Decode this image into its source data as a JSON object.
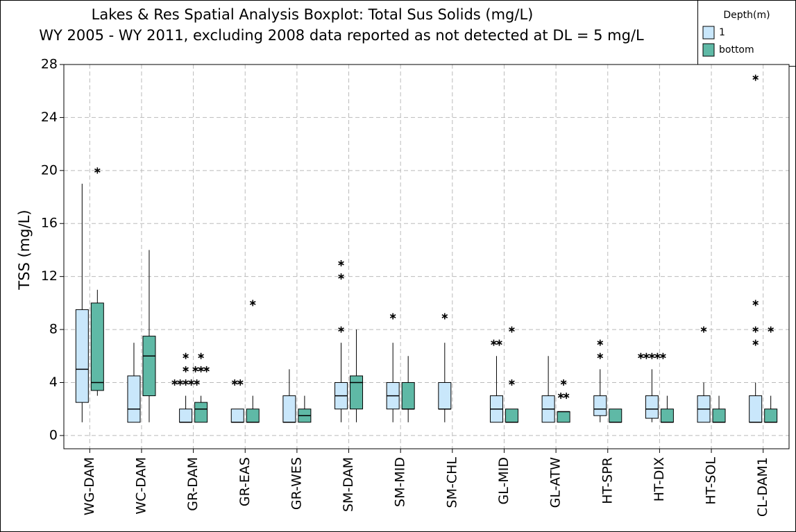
{
  "chart_data": {
    "type": "boxplot",
    "title": "Lakes & Res Spatial Analysis Boxplot: Total Sus Solids (mg/L)",
    "subtitle": "WY 2005 - WY 2011, excluding 2008 data reported as not detected at DL  = 5 mg/L",
    "y_label": "TSS (mg/L)",
    "legend_title": "Depth(m)",
    "categories": [
      "WG-DAM",
      "WC-DAM",
      "GR-DAM",
      "GR-EAS",
      "GR-WES",
      "SM-DAM",
      "SM-MID",
      "SM-CHL",
      "GL-MID",
      "GL-ATW",
      "HT-SPR",
      "HT-DIX",
      "HT-SOL",
      "CL-DAM1"
    ],
    "ylim": [
      -1,
      28
    ],
    "yticks": [
      0,
      4,
      8,
      12,
      16,
      20,
      24,
      28
    ],
    "grid": true,
    "series": [
      {
        "name": "1",
        "color": "#c9e7fb",
        "whisker_low": [
          1,
          1,
          1,
          1,
          1,
          1,
          1,
          1,
          1,
          1,
          1,
          1,
          1,
          1
        ],
        "q1": [
          2.5,
          1,
          1,
          1,
          1,
          2,
          2,
          2,
          1,
          1,
          1.5,
          1.3,
          1,
          1
        ],
        "median": [
          5,
          2,
          1,
          1,
          1,
          3,
          3,
          2,
          2,
          2,
          2,
          2,
          2,
          1
        ],
        "q3": [
          9.5,
          4.5,
          2,
          2,
          3,
          4,
          4,
          4,
          3,
          3,
          3,
          3,
          3,
          3
        ],
        "whisker_high": [
          19,
          7,
          3,
          2,
          5,
          7,
          7,
          7,
          6,
          6,
          5,
          5,
          4,
          4
        ],
        "outliers": [
          [],
          [],
          [
            4,
            4,
            4,
            4,
            4,
            5,
            6
          ],
          [
            4,
            4
          ],
          [],
          [
            8,
            12,
            13
          ],
          [
            9
          ],
          [
            9
          ],
          [
            7,
            7
          ],
          [],
          [
            6,
            7
          ],
          [
            6,
            6,
            6,
            6,
            6
          ],
          [
            8
          ],
          [
            7,
            8,
            10,
            27
          ]
        ]
      },
      {
        "name": "bottom",
        "color": "#5fb9a6",
        "whisker_low": [
          3,
          1,
          1,
          1,
          1,
          1,
          1,
          null,
          1,
          1,
          1,
          1,
          1,
          1
        ],
        "q1": [
          3.4,
          3,
          1,
          1,
          1,
          2,
          2,
          null,
          1,
          1,
          1,
          1,
          1,
          1
        ],
        "median": [
          4,
          6,
          2,
          1,
          1.5,
          4,
          2,
          null,
          1,
          1.8,
          1,
          1,
          1,
          1
        ],
        "q3": [
          10,
          7.5,
          2.5,
          2,
          2,
          4.5,
          4,
          null,
          2,
          1.8,
          2,
          2,
          2,
          2
        ],
        "whisker_high": [
          11,
          14,
          3,
          3,
          3,
          8,
          6,
          null,
          2,
          1.8,
          2,
          3,
          3,
          3
        ],
        "outliers": [
          [
            20
          ],
          [],
          [
            5,
            5,
            5,
            6
          ],
          [
            10
          ],
          [],
          [],
          [],
          [],
          [
            4,
            8
          ],
          [
            3,
            3,
            4
          ],
          [],
          [],
          [],
          [
            8
          ]
        ]
      }
    ]
  }
}
